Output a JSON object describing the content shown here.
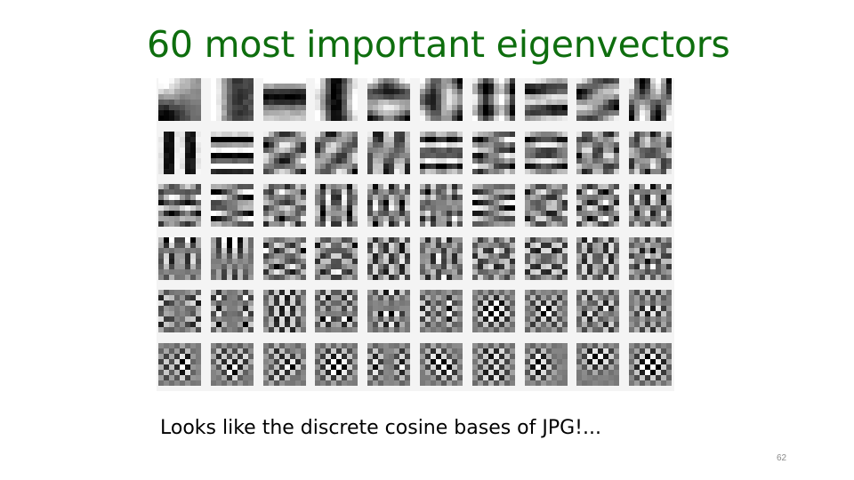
{
  "slide": {
    "title": "60 most important eigenvectors",
    "caption": "Looks like the discrete cosine bases of JPG!...",
    "page_number": "62"
  },
  "figure": {
    "rows": 6,
    "columns": 10,
    "patch_resolution": 8
  },
  "colors": {
    "title": "#0e6e0e",
    "caption": "#000000",
    "page_number": "#8a8a8a",
    "figure_background": "#f4f4f4"
  }
}
